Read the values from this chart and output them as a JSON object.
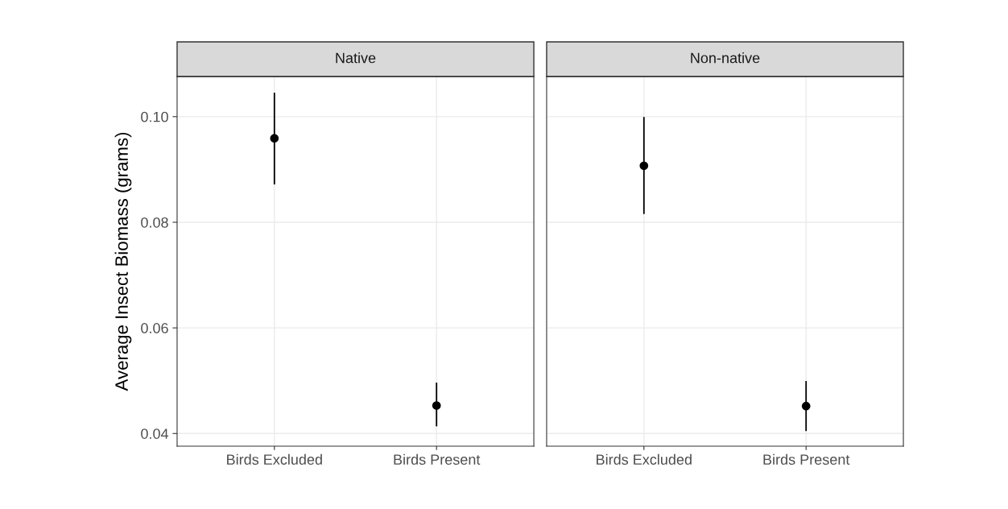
{
  "chart_data": [
    {
      "type": "scatter",
      "title": "Native",
      "ylabel": "Average Insect Biomass (grams)",
      "categories": [
        "Birds Excluded",
        "Birds Present"
      ],
      "values": [
        0.0959,
        0.0453
      ],
      "errors": [
        [
          0.0873,
          0.1044
        ],
        [
          0.0415,
          0.0495
        ]
      ],
      "color": "#000000",
      "marker": "circle",
      "ylim": [
        0.0376,
        0.1076
      ],
      "yticks": [
        {
          "value": 0.04,
          "label": "0.04"
        },
        {
          "value": 0.06,
          "label": "0.06"
        },
        {
          "value": 0.08,
          "label": "0.08"
        },
        {
          "value": 0.1,
          "label": "0.10"
        }
      ],
      "grid": true
    },
    {
      "type": "scatter",
      "title": "Non-native",
      "categories": [
        "Birds Excluded",
        "Birds Present"
      ],
      "values": [
        0.0907,
        0.0452
      ],
      "errors": [
        [
          0.0817,
          0.0998
        ],
        [
          0.0406,
          0.0498
        ]
      ],
      "color": "#000000",
      "marker": "circle",
      "ylim": [
        0.0376,
        0.1076
      ],
      "yticks": [
        {
          "value": 0.04,
          "label": null
        },
        {
          "value": 0.06,
          "label": null
        },
        {
          "value": 0.08,
          "label": null
        },
        {
          "value": 0.1,
          "label": null
        }
      ],
      "grid": true,
      "tick_labels": "x"
    }
  ]
}
